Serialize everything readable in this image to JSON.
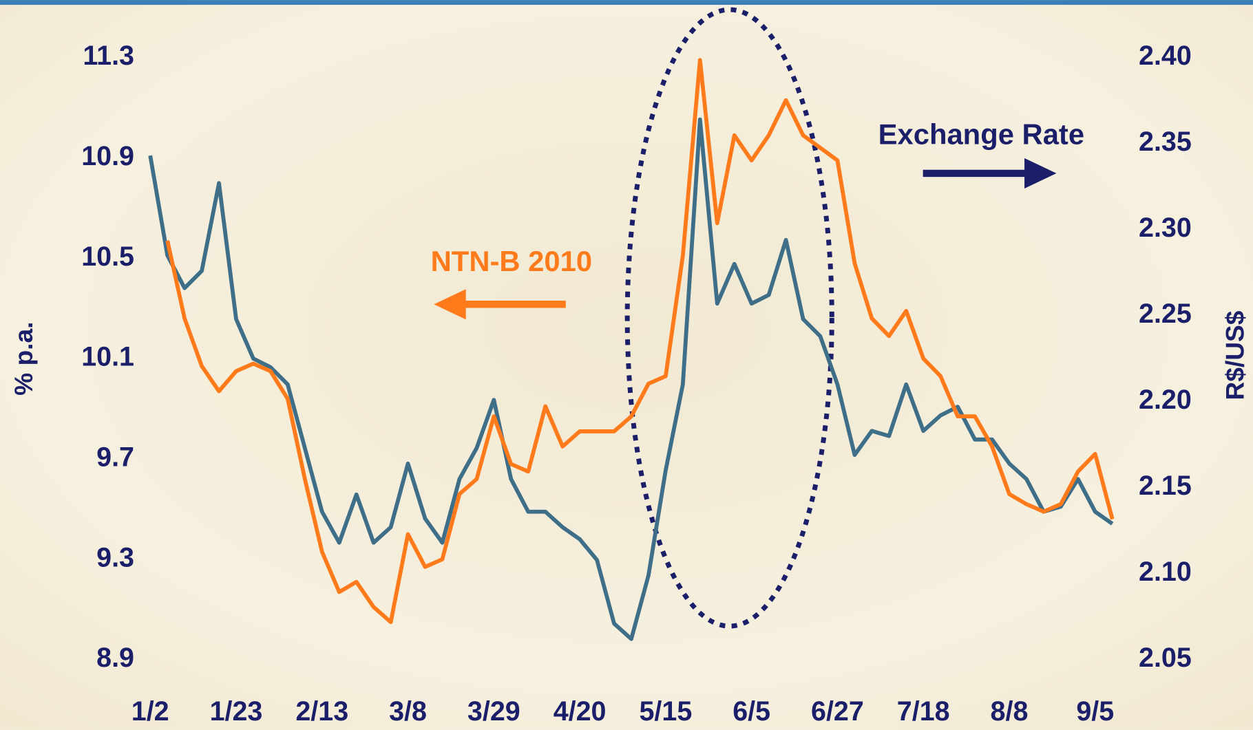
{
  "chart_data": {
    "type": "line",
    "categories": [
      "1/2",
      null,
      null,
      null,
      null,
      "1/23",
      null,
      null,
      null,
      null,
      "2/13",
      null,
      null,
      null,
      null,
      "3/8",
      null,
      null,
      null,
      null,
      "3/29",
      null,
      null,
      null,
      null,
      "4/20",
      null,
      null,
      null,
      null,
      "5/15",
      null,
      null,
      null,
      null,
      "6/5",
      null,
      null,
      null,
      null,
      "6/27",
      null,
      null,
      null,
      null,
      "7/18",
      null,
      null,
      null,
      null,
      "8/8",
      null,
      null,
      null,
      null,
      "9/5",
      null
    ],
    "series": [
      {
        "name": "NTN-B 2010",
        "color": "#ff7a1a",
        "axis": "y",
        "values": [
          null,
          10.57,
          10.26,
          10.07,
          9.97,
          10.05,
          10.08,
          10.05,
          9.94,
          9.62,
          9.33,
          9.17,
          9.21,
          9.11,
          9.05,
          9.4,
          9.27,
          9.3,
          9.56,
          9.62,
          9.87,
          9.68,
          9.65,
          9.91,
          9.75,
          9.81,
          9.81,
          9.81,
          9.87,
          10.0,
          10.03,
          10.51,
          11.29,
          10.64,
          10.99,
          10.89,
          10.99,
          11.13,
          10.99,
          10.94,
          10.89,
          10.48,
          10.26,
          10.19,
          10.29,
          10.1,
          10.03,
          9.87,
          9.87,
          9.75,
          9.56,
          9.52,
          9.49,
          9.52,
          9.65,
          9.72,
          9.46
        ]
      },
      {
        "name": "Exchange Rate",
        "color": "#3f6e88",
        "axis": "y2",
        "values": [
          2.343,
          2.285,
          2.266,
          2.276,
          2.327,
          2.248,
          2.225,
          2.22,
          2.21,
          2.173,
          2.136,
          2.118,
          2.146,
          2.118,
          2.127,
          2.164,
          2.132,
          2.118,
          2.155,
          2.173,
          2.201,
          2.155,
          2.136,
          2.136,
          2.127,
          2.12,
          2.108,
          2.071,
          2.062,
          2.099,
          2.16,
          2.21,
          2.364,
          2.257,
          2.28,
          2.257,
          2.262,
          2.294,
          2.248,
          2.238,
          2.21,
          2.169,
          2.183,
          2.18,
          2.21,
          2.183,
          2.192,
          2.197,
          2.178,
          2.178,
          2.164,
          2.155,
          2.136,
          2.139,
          2.155,
          2.136,
          2.129
        ]
      }
    ],
    "ylabel": "% p.a.",
    "y2label": "R$/US$",
    "ylim": [
      8.9,
      11.3
    ],
    "yticks": [
      8.9,
      9.3,
      9.7,
      10.1,
      10.5,
      10.9,
      11.3
    ],
    "y2lim": [
      2.05,
      2.4
    ],
    "y2ticks": [
      2.05,
      {
        "value": 2.1,
        "label": "2.10"
      },
      2.15,
      {
        "value": 2.2,
        "label": "2.20"
      },
      2.25,
      {
        "value": 2.3,
        "label": "2.30"
      },
      2.35,
      {
        "value": 2.4,
        "label": "2.40"
      }
    ]
  }
}
